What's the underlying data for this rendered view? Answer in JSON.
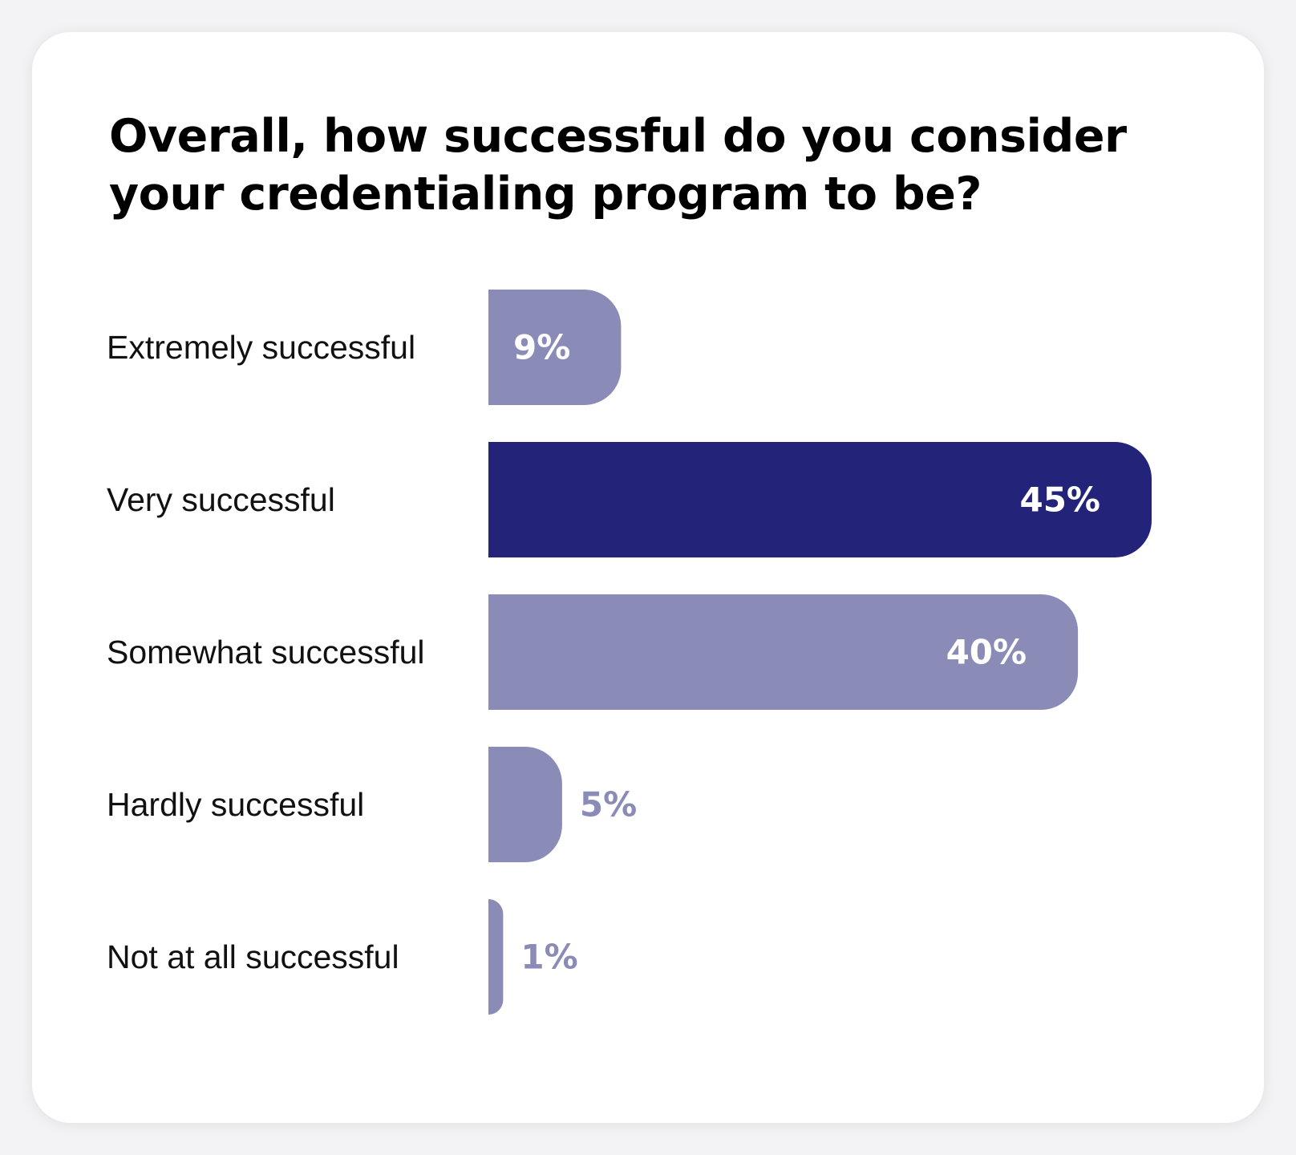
{
  "chart_data": {
    "type": "bar",
    "orientation": "horizontal",
    "title": "Overall, how successful do you consider your credentialing program to be?",
    "categories": [
      "Extremely successful",
      "Very successful",
      "Somewhat successful",
      "Hardly successful",
      "Not at all successful"
    ],
    "values": [
      9,
      45,
      40,
      5,
      1
    ],
    "value_labels": [
      "9%",
      "45%",
      "40%",
      "5%",
      "1%"
    ],
    "unit": "%",
    "xlim": [
      0,
      45
    ],
    "grid": false,
    "legend": "none",
    "highlight_index": 1,
    "colors": {
      "default_bar": "#8a8bb7",
      "highlight_bar": "#23237a",
      "label_on_bar": "#ffffff",
      "label_outside_bar": "#8a8bb7",
      "category_text": "#111111"
    }
  }
}
